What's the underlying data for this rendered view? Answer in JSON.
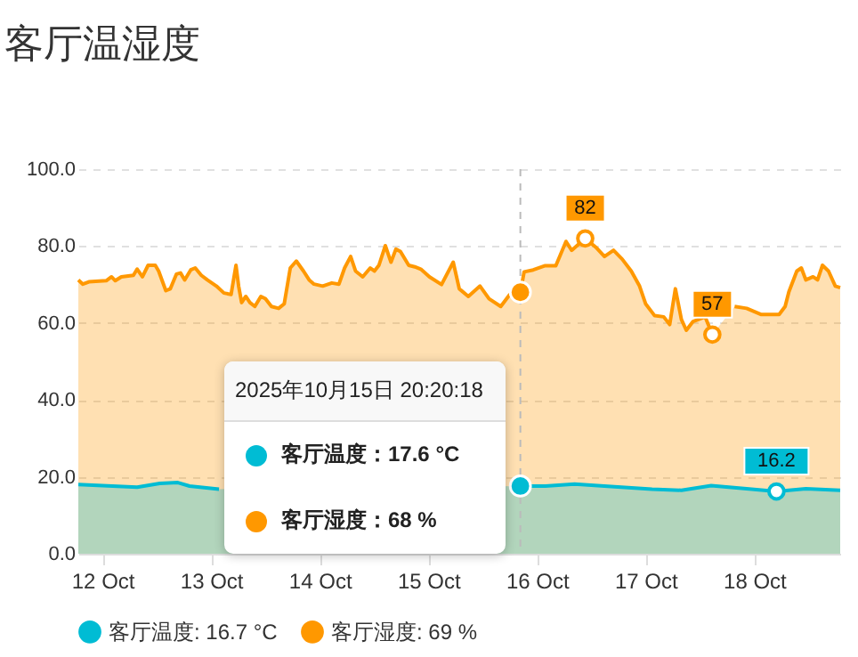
{
  "chart_data": {
    "type": "area",
    "title": "客厅温湿度",
    "series": [
      {
        "name": "客厅温度: 16.7 °C",
        "color": "#00bcd4",
        "x": [
          "2025-10-11T18:40",
          "2025-10-12T07:40",
          "2025-10-12T12:40",
          "2025-10-12T16:40",
          "2025-10-12T19:15",
          "2025-10-13T01:45",
          "2025-10-14T12:00",
          "2025-10-15T20:20",
          "2025-10-16T01:50",
          "2025-10-16T08:20",
          "2025-10-16T14:55",
          "2025-10-17T01:25",
          "2025-10-17T07:55",
          "2025-10-17T14:30",
          "2025-10-17T22:20",
          "2025-10-18T04:55",
          "2025-10-18T11:25",
          "2025-10-18T19:00"
        ],
        "values": [
          18.0,
          17.3,
          18.3,
          18.5,
          17.6,
          16.8,
          null,
          17.6,
          17.6,
          18.1,
          17.6,
          16.8,
          16.5,
          17.7,
          16.9,
          16.2,
          16.9,
          16.5
        ]
      },
      {
        "name": "客厅湿度: 69 %",
        "color": "#ff9800",
        "x": [
          "2025-10-11T18:40",
          "2025-10-11T19:40",
          "2025-10-11T21:00",
          "2025-10-12T00:50",
          "2025-10-12T02:00",
          "2025-10-12T02:50",
          "2025-10-12T04:10",
          "2025-10-12T06:50",
          "2025-10-12T07:40",
          "2025-10-12T08:50",
          "2025-10-12T10:05",
          "2025-10-12T11:40",
          "2025-10-12T12:25",
          "2025-10-12T14:00",
          "2025-10-12T15:00",
          "2025-10-12T16:20",
          "2025-10-12T17:15",
          "2025-10-12T18:10",
          "2025-10-12T19:30",
          "2025-10-12T20:30",
          "2025-10-12T21:50",
          "2025-10-12T23:10",
          "2025-10-13T01:10",
          "2025-10-13T02:50",
          "2025-10-13T04:25",
          "2025-10-13T05:30",
          "2025-10-13T06:05",
          "2025-10-13T06:45",
          "2025-10-13T07:40",
          "2025-10-13T08:35",
          "2025-10-13T09:40",
          "2025-10-13T11:00",
          "2025-10-13T12:00",
          "2025-10-13T13:20",
          "2025-10-13T14:55",
          "2025-10-13T16:10",
          "2025-10-13T17:30",
          "2025-10-13T18:50",
          "2025-10-13T20:25",
          "2025-10-13T21:40",
          "2025-10-13T22:45",
          "2025-10-14T00:40",
          "2025-10-14T02:40",
          "2025-10-14T04:15",
          "2025-10-14T05:30",
          "2025-10-14T06:50",
          "2025-10-14T07:55",
          "2025-10-14T09:30",
          "2025-10-14T11:10",
          "2025-10-14T12:05",
          "2025-10-14T13:05",
          "2025-10-14T14:30",
          "2025-10-14T15:45",
          "2025-10-14T16:50",
          "2025-10-14T17:50",
          "2025-10-14T19:40",
          "2025-10-14T21:00",
          "2025-10-14T22:20",
          "2025-10-15T00:15",
          "2025-10-15T02:55",
          "2025-10-15T05:30",
          "2025-10-15T06:50",
          "2025-10-15T08:50",
          "2025-10-15T11:25",
          "2025-10-15T13:25",
          "2025-10-15T16:00",
          "2025-10-15T18:00",
          "2025-10-15T20:20",
          "2025-10-15T21:10",
          "2025-10-15T23:10",
          "2025-10-16T01:50",
          "2025-10-16T04:10",
          "2025-10-16T06:25",
          "2025-10-16T07:40",
          "2025-10-16T10:40",
          "2025-10-16T13:00",
          "2025-10-16T14:55",
          "2025-10-16T16:55",
          "2025-10-16T18:50",
          "2025-10-16T20:50",
          "2025-10-16T22:40",
          "2025-10-17T00:00",
          "2025-10-17T02:00",
          "2025-10-17T04:00",
          "2025-10-17T05:20",
          "2025-10-17T06:35",
          "2025-10-17T07:55",
          "2025-10-17T09:00",
          "2025-10-17T10:30",
          "2025-10-17T13:10",
          "2025-10-17T14:45",
          "2025-10-17T15:45",
          "2025-10-17T17:05",
          "2025-10-17T19:40",
          "2025-10-17T22:20",
          "2025-10-18T01:35",
          "2025-10-18T05:30",
          "2025-10-18T06:50",
          "2025-10-18T07:40",
          "2025-10-18T09:25",
          "2025-10-18T10:25",
          "2025-10-18T11:25",
          "2025-10-18T13:00",
          "2025-10-18T14:00",
          "2025-10-18T15:05",
          "2025-10-18T16:25",
          "2025-10-18T17:55",
          "2025-10-18T19:00"
        ],
        "values": [
          71.2,
          70.1,
          70.7,
          71.0,
          72.0,
          71.0,
          72.0,
          72.4,
          74.0,
          72.0,
          75.0,
          75.0,
          73.5,
          68.4,
          68.9,
          72.7,
          73.0,
          71.2,
          73.8,
          74.3,
          72.4,
          71.2,
          69.6,
          67.8,
          67.4,
          75.0,
          69.6,
          65.3,
          66.9,
          65.3,
          64.3,
          66.9,
          66.3,
          64.3,
          63.8,
          65.0,
          74.3,
          76.1,
          73.5,
          71.2,
          70.1,
          69.6,
          70.4,
          70.1,
          74.3,
          77.3,
          73.5,
          72.0,
          74.3,
          73.5,
          75.0,
          80.1,
          75.8,
          79.2,
          78.6,
          75.0,
          74.6,
          74.0,
          72.0,
          70.0,
          75.8,
          68.9,
          66.9,
          69.6,
          66.3,
          64.3,
          67.4,
          68,
          73.3,
          73.8,
          74.9,
          74.9,
          81.2,
          78.9,
          82,
          79.7,
          77.3,
          78.9,
          76.6,
          73.5,
          69.6,
          65.0,
          61.9,
          61.6,
          59.6,
          68.9,
          60.9,
          58.1,
          60.4,
          61.6,
          57,
          null,
          null,
          64.3,
          63.8,
          62.2,
          62.2,
          64.3,
          68.1,
          73.5,
          74.3,
          71.2,
          72.0,
          71.2,
          75.0,
          73.5,
          69.6,
          69.2
        ]
      }
    ],
    "xlim": [
      "2025-10-11T18:40",
      "2025-10-18T19:00"
    ],
    "xticks": [
      {
        "value": "2025-10-12",
        "label": "12 Oct"
      },
      {
        "value": "2025-10-13",
        "label": "13 Oct"
      },
      {
        "value": "2025-10-14",
        "label": "14 Oct"
      },
      {
        "value": "2025-10-15",
        "label": "15 Oct"
      },
      {
        "value": "2025-10-16",
        "label": "16 Oct"
      },
      {
        "value": "2025-10-17",
        "label": "17 Oct"
      },
      {
        "value": "2025-10-18",
        "label": "18 Oct"
      }
    ],
    "ylim": [
      0,
      100
    ],
    "yticks": [
      {
        "value": 0,
        "label": "0.0"
      },
      {
        "value": 20,
        "label": "20.0"
      },
      {
        "value": 40,
        "label": "40.0"
      },
      {
        "value": 60,
        "label": "60.0"
      },
      {
        "value": 80,
        "label": "80.0"
      },
      {
        "value": 100,
        "label": "100.0"
      }
    ],
    "grid": "y",
    "legend": "bottom",
    "ref_lines": [
      {
        "axis": "x",
        "value": "2025-10-15T20:20",
        "color": "#bbbbbb",
        "line_style": "dashed"
      }
    ],
    "annotations": [
      "2025年10月15日 20:20:18",
      "客厅温度：17.6 °C",
      "客厅湿度：68 %",
      {
        "text": "82",
        "x": "2025-10-16T10:40",
        "y": 82
      },
      {
        "text": "57",
        "x": "2025-10-17T14:45",
        "y": 57
      },
      {
        "text": "16.2",
        "x": "2025-10-18T04:55",
        "y": 16.2
      }
    ]
  }
}
